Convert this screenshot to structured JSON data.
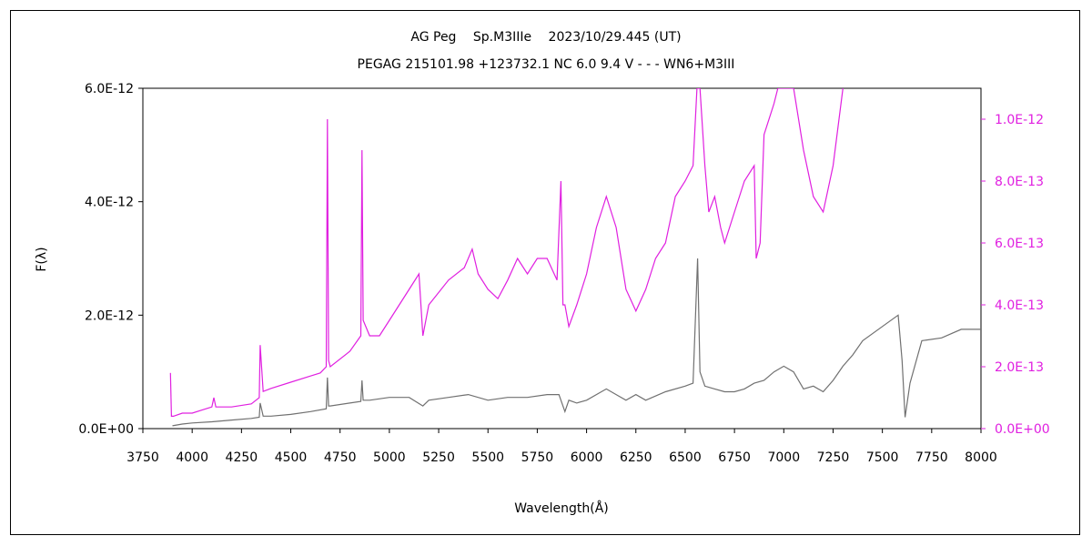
{
  "chart_data": {
    "type": "line",
    "title": "AG Peg　 Sp.M3IIIe　 2023/10/29.445 (UT)",
    "subtitle": "PEGAG 215101.98 +123732.1 NC 6.0 9.4 V - - - WN6+M3III",
    "xlabel": "Wavelength(Å)",
    "ylabel": "F(λ)",
    "xlim": [
      3750,
      8000
    ],
    "ylim_left": [
      0,
      6e-12
    ],
    "ylim_right": [
      0,
      1.1e-12
    ],
    "x_ticks": [
      "3750",
      "4000",
      "4250",
      "4500",
      "4750",
      "5000",
      "5250",
      "5500",
      "5750",
      "6000",
      "6250",
      "6500",
      "6750",
      "7000",
      "7250",
      "7500",
      "7750",
      "8000"
    ],
    "y_ticks_left": [
      "0.0E+00",
      "2.0E-12",
      "4.0E-12",
      "6.0E-12"
    ],
    "y_ticks_right": [
      "0.0E+00",
      "2.0E-13",
      "4.0E-13",
      "6.0E-13",
      "8.0E-13",
      "1.0E-12"
    ],
    "grid": false,
    "colors": {
      "left_series": "#707070",
      "right_series": "#e020e0",
      "right_axis": "#e020e0"
    },
    "series": [
      {
        "axis": "left",
        "x": [
          3900,
          3950,
          4000,
          4100,
          4200,
          4300,
          4340,
          4345,
          4360,
          4400,
          4500,
          4600,
          4680,
          4686,
          4692,
          4700,
          4800,
          4855,
          4861,
          4867,
          4900,
          5000,
          5100,
          5170,
          5200,
          5300,
          5400,
          5500,
          5600,
          5700,
          5800,
          5860,
          5890,
          5910,
          5950,
          6000,
          6100,
          6150,
          6200,
          6250,
          6300,
          6400,
          6500,
          6540,
          6563,
          6575,
          6600,
          6650,
          6700,
          6750,
          6800,
          6850,
          6900,
          6950,
          7000,
          7050,
          7100,
          7150,
          7200,
          7250,
          7300,
          7350,
          7400,
          7500,
          7580,
          7600,
          7615,
          7640,
          7700,
          7800,
          7900,
          8000
        ],
        "y": [
          5e-14,
          8e-14,
          1e-13,
          1.2e-13,
          1.5e-13,
          1.8e-13,
          2e-13,
          4.5e-13,
          2.2e-13,
          2.2e-13,
          2.5e-13,
          3e-13,
          3.5e-13,
          9e-13,
          4e-13,
          4e-13,
          4.5e-13,
          4.8e-13,
          8.5e-13,
          5e-13,
          5e-13,
          5.5e-13,
          5.5e-13,
          4e-13,
          5e-13,
          5.5e-13,
          6e-13,
          5e-13,
          5.5e-13,
          5.5e-13,
          6e-13,
          6e-13,
          3e-13,
          5e-13,
          4.5e-13,
          5e-13,
          7e-13,
          6e-13,
          5e-13,
          6e-13,
          5e-13,
          6.5e-13,
          7.5e-13,
          8e-13,
          3e-12,
          1e-12,
          7.5e-13,
          7e-13,
          6.5e-13,
          6.5e-13,
          7e-13,
          8e-13,
          8.5e-13,
          1e-12,
          1.1e-12,
          1e-12,
          7e-13,
          7.5e-13,
          6.5e-13,
          8.5e-13,
          1.1e-12,
          1.3e-12,
          1.55e-12,
          1.8e-12,
          2e-12,
          1.2e-12,
          2e-13,
          8e-13,
          1.55e-12,
          1.6e-12,
          1.75e-12,
          1.75e-12
        ]
      },
      {
        "axis": "right",
        "x": [
          3890,
          3895,
          3905,
          3950,
          4000,
          4050,
          4100,
          4110,
          4120,
          4200,
          4300,
          4340,
          4345,
          4360,
          4400,
          4500,
          4600,
          4650,
          4680,
          4686,
          4692,
          4700,
          4800,
          4855,
          4861,
          4867,
          4900,
          4950,
          5000,
          5100,
          5150,
          5170,
          5200,
          5300,
          5380,
          5420,
          5450,
          5500,
          5550,
          5600,
          5650,
          5700,
          5750,
          5800,
          5850,
          5870,
          5880,
          5890,
          5910,
          5950,
          6000,
          6050,
          6100,
          6150,
          6200,
          6250,
          6300,
          6350,
          6400,
          6450,
          6500,
          6540,
          6560,
          6575,
          6600,
          6620,
          6650,
          6680,
          6700,
          6750,
          6800,
          6850,
          6860,
          6880,
          6900,
          6950,
          6970,
          7050,
          7100,
          7150,
          7200,
          7250,
          7300
        ],
        "y": [
          1.8e-13,
          4e-14,
          4e-14,
          5e-14,
          5e-14,
          6e-14,
          7e-14,
          1e-13,
          7e-14,
          7e-14,
          8e-14,
          1e-13,
          2.7e-13,
          1.2e-13,
          1.3e-13,
          1.5e-13,
          1.7e-13,
          1.8e-13,
          2e-13,
          1e-12,
          2.2e-13,
          2e-13,
          2.5e-13,
          3e-13,
          9e-13,
          3.5e-13,
          3e-13,
          3e-13,
          3.5e-13,
          4.5e-13,
          5e-13,
          3e-13,
          4e-13,
          4.8e-13,
          5.2e-13,
          5.8e-13,
          5e-13,
          4.5e-13,
          4.2e-13,
          4.8e-13,
          5.5e-13,
          5e-13,
          5.5e-13,
          5.5e-13,
          4.8e-13,
          8e-13,
          4e-13,
          4e-13,
          3.3e-13,
          4e-13,
          5e-13,
          6.5e-13,
          7.5e-13,
          6.5e-13,
          4.5e-13,
          3.8e-13,
          4.5e-13,
          5.5e-13,
          6e-13,
          7.5e-13,
          8e-13,
          8.5e-13,
          1.1e-12,
          1.1e-12,
          8.5e-13,
          7e-13,
          7.5e-13,
          6.5e-13,
          6e-13,
          7e-13,
          8e-13,
          8.5e-13,
          5.5e-13,
          6e-13,
          9.5e-13,
          1.05e-12,
          1.1e-12,
          1.1e-12,
          9e-13,
          7.5e-13,
          7e-13,
          8.5e-13,
          1.1e-12
        ]
      }
    ]
  }
}
